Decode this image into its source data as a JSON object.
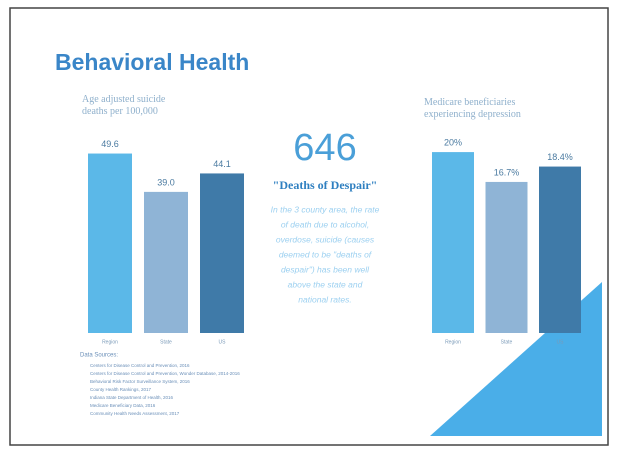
{
  "title": "Behavioral Health",
  "highlight": {
    "number": "646",
    "label": "\"Deaths of Despair\"",
    "text": [
      "In the 3 county area, the rate",
      "of death due to alcohol,",
      "overdose, suicide (causes",
      "deemed to be \"deaths of",
      "despair\") has been well",
      "above the state and",
      "national rates."
    ]
  },
  "sources": {
    "title": "Data Sources:",
    "items": [
      "Centers for Disease Control and Prevention, 2016",
      "Centers for Disease Control and Prevention, Wonder Database, 2014-2016",
      "Behavioral Risk Factor Surveillance System, 2016",
      "County Health Rankings, 2017",
      "Indiana State Department of Health, 2016",
      "Medicare Beneficiary Data, 2016",
      "Community Health Needs Assessment, 2017"
    ]
  },
  "chart_data": [
    {
      "type": "bar",
      "title": "Age adjusted suicide deaths per 100,000",
      "categories": [
        "Region",
        "State",
        "US"
      ],
      "values": [
        49.6,
        39.0,
        44.1
      ],
      "value_labels": [
        "49.6",
        "39.0",
        "44.1"
      ],
      "colors": [
        "#5bb8e8",
        "#8fb4d6",
        "#3f7aa8"
      ],
      "ylim": [
        0,
        55
      ]
    },
    {
      "type": "bar",
      "title": "Medicare beneficiaries experiencing depression",
      "categories": [
        "Region",
        "State",
        "US"
      ],
      "values": [
        20,
        16.7,
        18.4
      ],
      "value_labels": [
        "20%",
        "16.7%",
        "18.4%"
      ],
      "colors": [
        "#5bb8e8",
        "#8fb4d6",
        "#3f7aa8"
      ],
      "ylim": [
        0,
        22
      ]
    }
  ]
}
